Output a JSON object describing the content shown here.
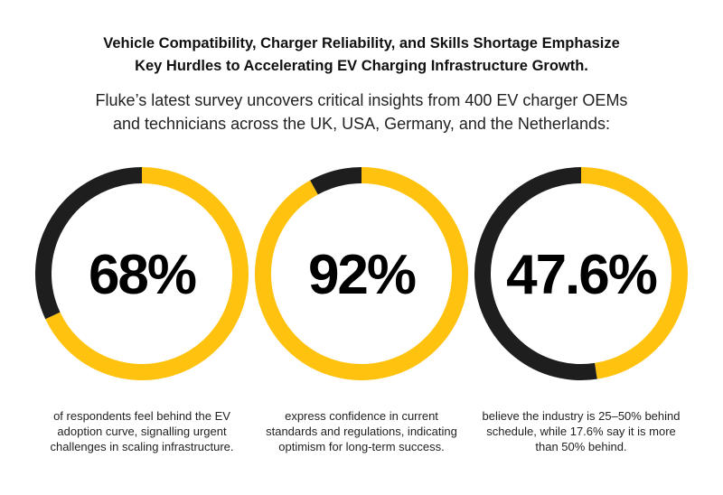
{
  "title": "Vehicle Compatibility, Charger Reliability, and Skills Shortage Emphasize\nKey Hurdles to Accelerating EV Charging Infrastructure Growth.",
  "subtitle": "Fluke’s latest survey uncovers critical insights from 400 EV charger OEMs\nand technicians across the UK, USA, Germany, and the Netherlands:",
  "colors": {
    "highlight": "#FFC20E",
    "remainder": "#1E1E1E"
  },
  "chart_data": [
    {
      "type": "pie",
      "subtype": "donut",
      "value": 68,
      "label": "68%",
      "caption": "of respondents feel behind the EV\nadoption curve, signalling urgent\nchallenges in scaling infrastructure."
    },
    {
      "type": "pie",
      "subtype": "donut",
      "value": 92,
      "label": "92%",
      "caption": "express confidence in current\nstandards and regulations, indicating\noptimism for long-term success."
    },
    {
      "type": "pie",
      "subtype": "donut",
      "value": 47.6,
      "label": "47.6%",
      "caption": "believe the industry is 25–50% behind\nschedule, while 17.6% say it is more\nthan 50% behind."
    }
  ]
}
